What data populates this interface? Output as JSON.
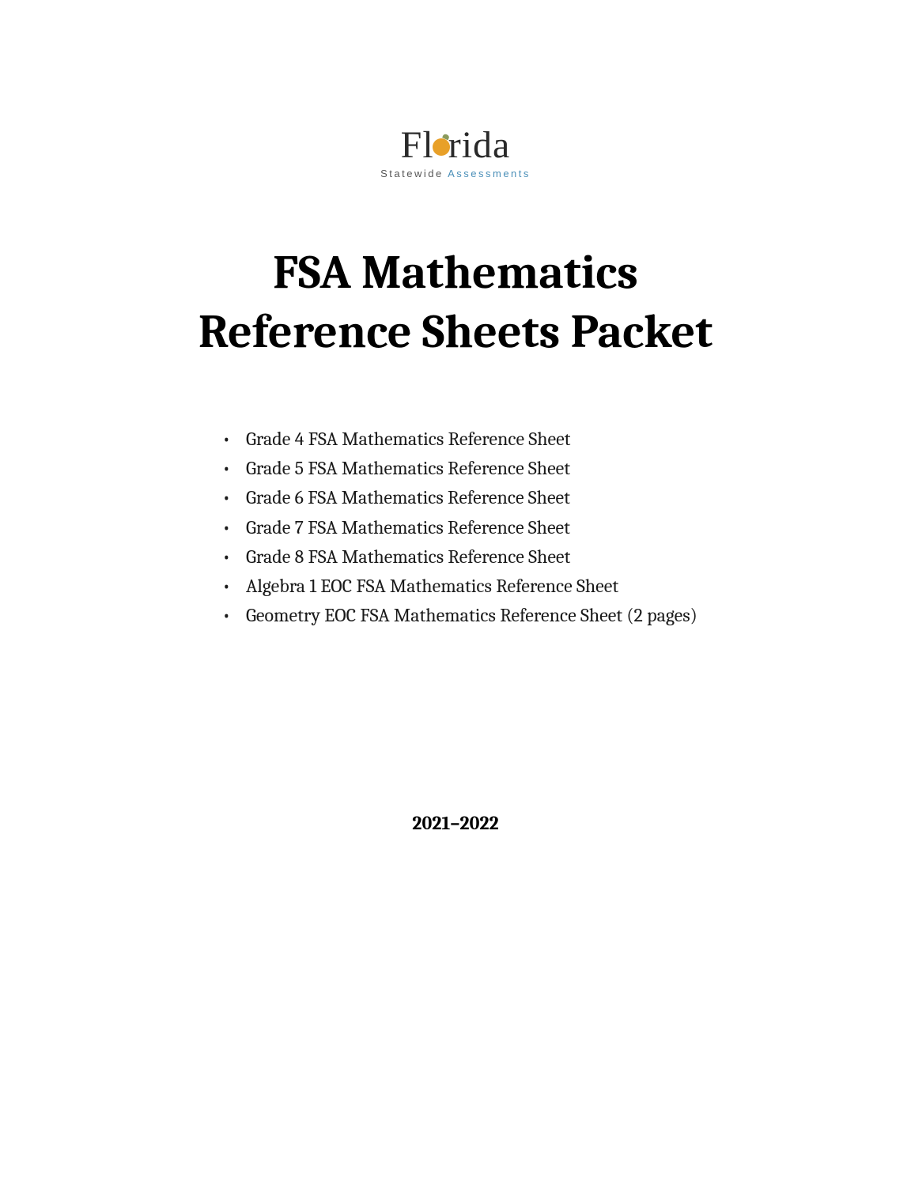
{
  "logo": {
    "line1_prefix": "Fl",
    "line1_suffix": "rida",
    "sub_prefix": "Statewide ",
    "sub_accent": "Assessments"
  },
  "title": {
    "line1": "FSA Mathematics",
    "line2": "Reference Sheets Packet"
  },
  "contents": [
    "Grade 4 FSA Mathematics Reference Sheet",
    "Grade 5 FSA Mathematics Reference Sheet",
    "Grade 6 FSA Mathematics Reference Sheet",
    "Grade 7 FSA Mathematics Reference Sheet",
    "Grade 8 FSA Mathematics Reference Sheet",
    "Algebra 1 EOC FSA Mathematics Reference Sheet",
    "Geometry EOC FSA Mathematics Reference Sheet (2 pages)"
  ],
  "year": "2021–2022",
  "colors": {
    "text": "#000000",
    "background": "#ffffff",
    "logo_orange": "#e8a028",
    "logo_leaf": "#8a9a5b",
    "logo_sub_gray": "#555555",
    "logo_sub_blue": "#4a8fb8"
  },
  "typography": {
    "title_fontsize": 60,
    "title_weight": 700,
    "list_fontsize": 24,
    "year_fontsize": 24,
    "year_weight": 700,
    "logo_main_fontsize": 48,
    "logo_sub_fontsize": 13,
    "font_family": "Cambria, Georgia, serif"
  }
}
